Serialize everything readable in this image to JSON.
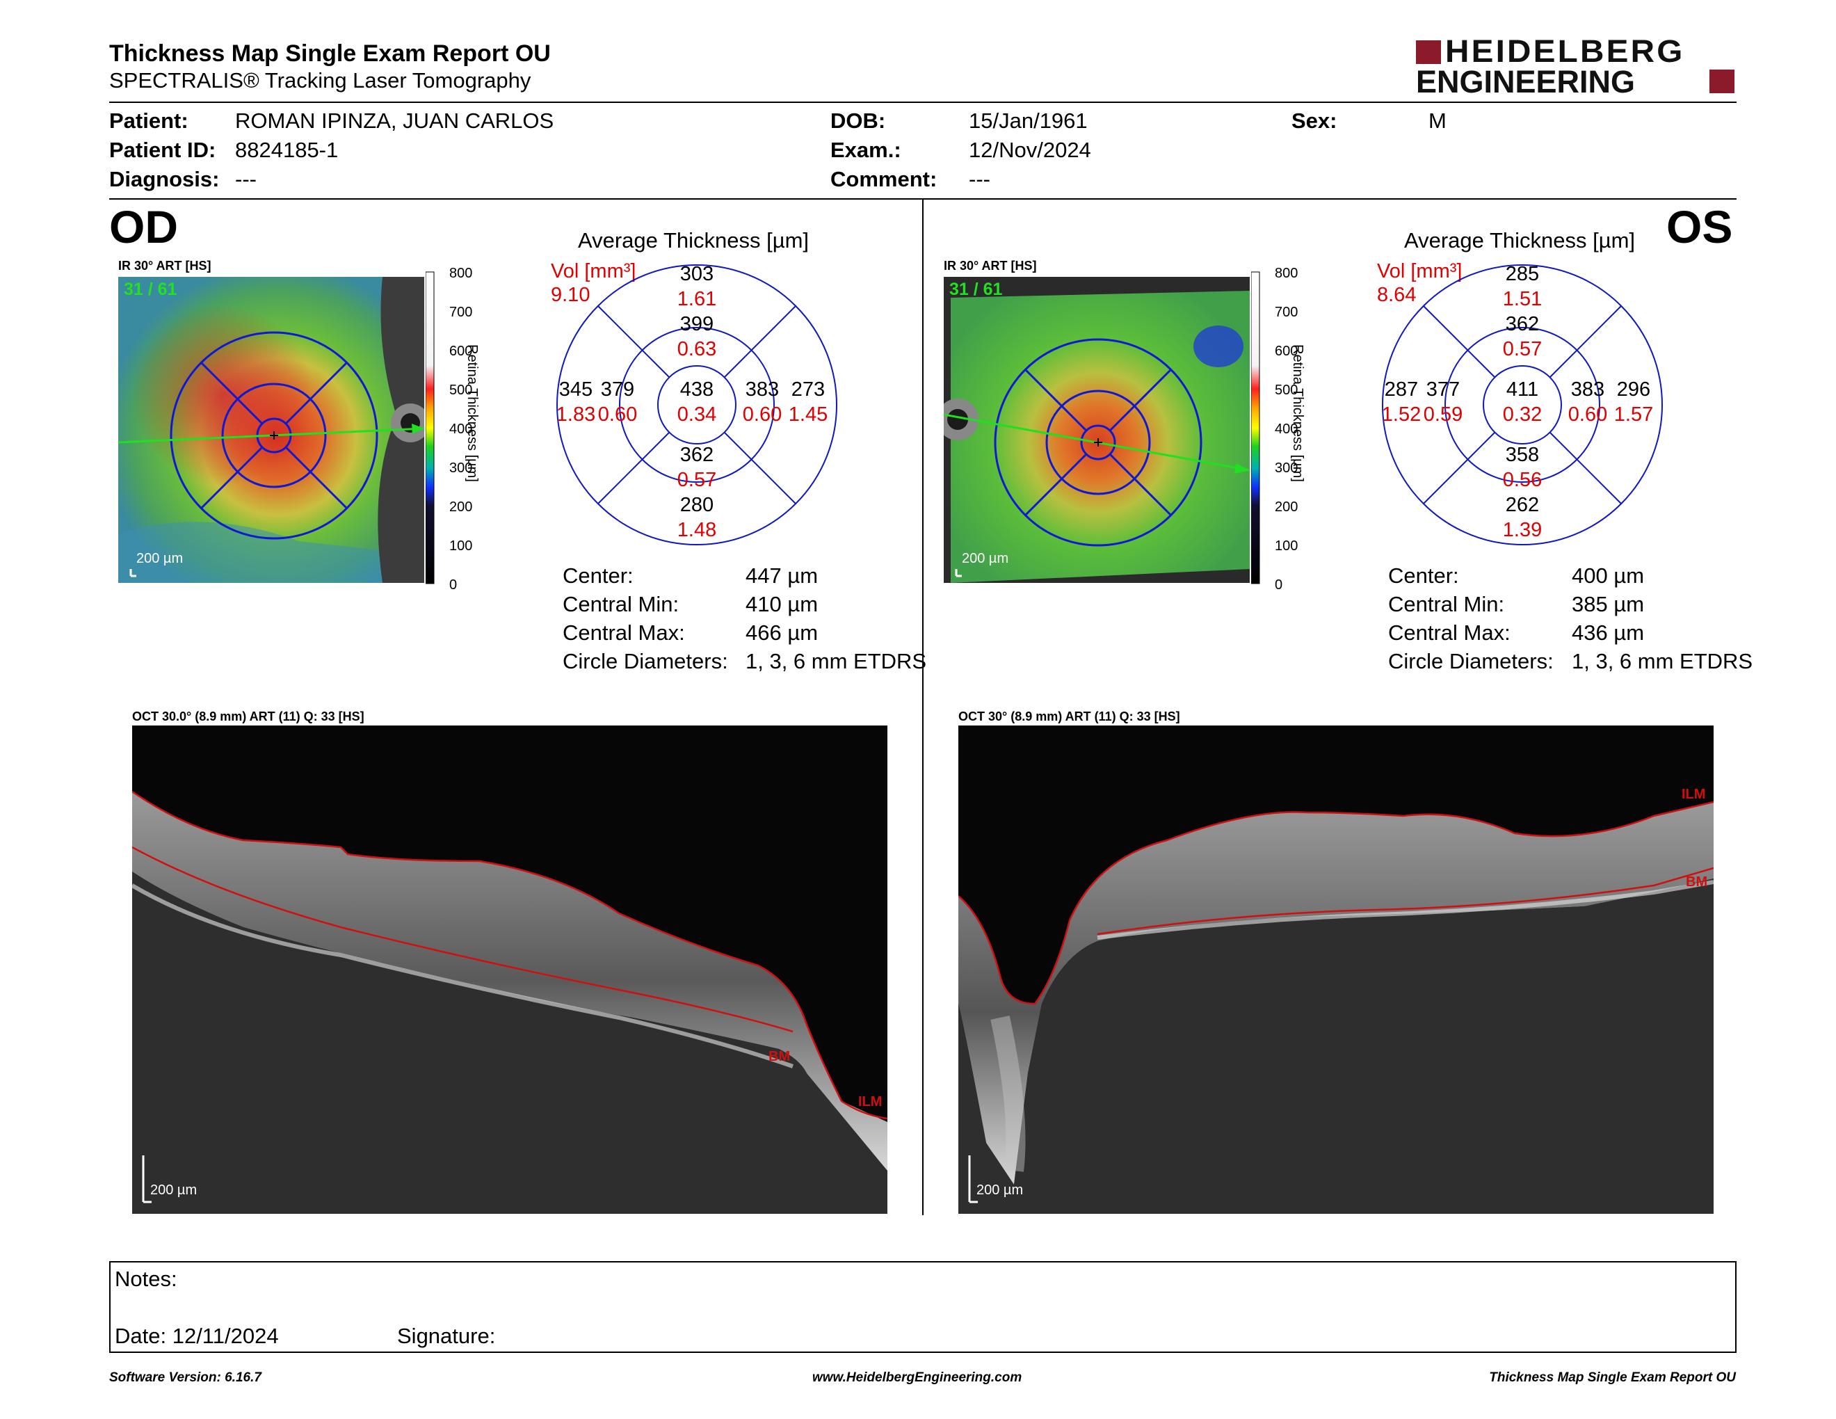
{
  "report": {
    "title": "Thickness Map Single Exam Report OU",
    "subtitle": "SPECTRALIS® Tracking Laser Tomography",
    "logo_line1": "HEIDELBERG",
    "logo_line2": "ENGINEERING",
    "brand_color": "#8b1a2b"
  },
  "patient": {
    "patient_label": "Patient:",
    "patient_value": "ROMAN IPINZA, JUAN CARLOS",
    "id_label": "Patient ID:",
    "id_value": "8824185-1",
    "diagnosis_label": "Diagnosis:",
    "diagnosis_value": "---",
    "dob_label": "DOB:",
    "dob_value": "15/Jan/1961",
    "exam_label": "Exam.:",
    "exam_value": "12/Nov/2024",
    "comment_label": "Comment:",
    "comment_value": "---",
    "sex_label": "Sex:",
    "sex_value": "M"
  },
  "colorbar": {
    "axis_label": "Retina Thickness [µm]",
    "ticks": [
      "800",
      "700",
      "600",
      "500",
      "400",
      "300",
      "200",
      "100",
      "0"
    ]
  },
  "od": {
    "eye": "OD",
    "fundus_label": "IR 30° ART [HS]",
    "frames": "31 / 61",
    "scale": "200 µm",
    "avg_title": "Average Thickness [µm]",
    "vol_label": "Vol [mm³]",
    "vol_value": "9.10",
    "grid": {
      "sup_outer": [
        "303",
        "1.61"
      ],
      "sup_inner": [
        "399",
        "0.63"
      ],
      "temp_outer": [
        "345",
        "1.83"
      ],
      "temp_inner": [
        "379",
        "0.60"
      ],
      "center": [
        "438",
        "0.34"
      ],
      "nasal_inner": [
        "383",
        "0.60"
      ],
      "nasal_outer": [
        "273",
        "1.45"
      ],
      "inf_inner": [
        "362",
        "0.57"
      ],
      "inf_outer": [
        "280",
        "1.48"
      ]
    },
    "stats": {
      "center_label": "Center:",
      "center_value": "447 µm",
      "min_label": "Central Min:",
      "min_value": "410 µm",
      "max_label": "Central Max:",
      "max_value": "466 µm",
      "diam_label": "Circle Diameters:",
      "diam_value": "1, 3, 6 mm ETDRS"
    },
    "oct_label": "OCT 30.0° (8.9 mm) ART (11) Q: 33 [HS]",
    "oct_scale": "200 µm",
    "ilm": "ILM",
    "bm": "BM"
  },
  "os": {
    "eye": "OS",
    "fundus_label": "IR 30° ART [HS]",
    "frames": "31 / 61",
    "scale": "200 µm",
    "avg_title": "Average Thickness [µm]",
    "vol_label": "Vol [mm³]",
    "vol_value": "8.64",
    "grid": {
      "sup_outer": [
        "285",
        "1.51"
      ],
      "sup_inner": [
        "362",
        "0.57"
      ],
      "temp_outer": [
        "287",
        "1.52"
      ],
      "temp_inner": [
        "377",
        "0.59"
      ],
      "center": [
        "411",
        "0.32"
      ],
      "nasal_inner": [
        "383",
        "0.60"
      ],
      "nasal_outer": [
        "296",
        "1.57"
      ],
      "inf_inner": [
        "358",
        "0.56"
      ],
      "inf_outer": [
        "262",
        "1.39"
      ]
    },
    "stats": {
      "center_label": "Center:",
      "center_value": "400 µm",
      "min_label": "Central Min:",
      "min_value": "385 µm",
      "max_label": "Central Max:",
      "max_value": "436 µm",
      "diam_label": "Circle Diameters:",
      "diam_value": "1, 3, 6 mm ETDRS"
    },
    "oct_label": "OCT 30° (8.9 mm) ART (11) Q: 33 [HS]",
    "oct_scale": "200 µm",
    "ilm": "ILM",
    "bm": "BM"
  },
  "notes": {
    "notes_label": "Notes:",
    "date_label": "Date: 12/11/2024",
    "signature_label": "Signature:"
  },
  "footer": {
    "version": "Software Version: 6.16.7",
    "website": "www.HeidelbergEngineering.com",
    "report_name": "Thickness Map Single Exam Report OU"
  }
}
